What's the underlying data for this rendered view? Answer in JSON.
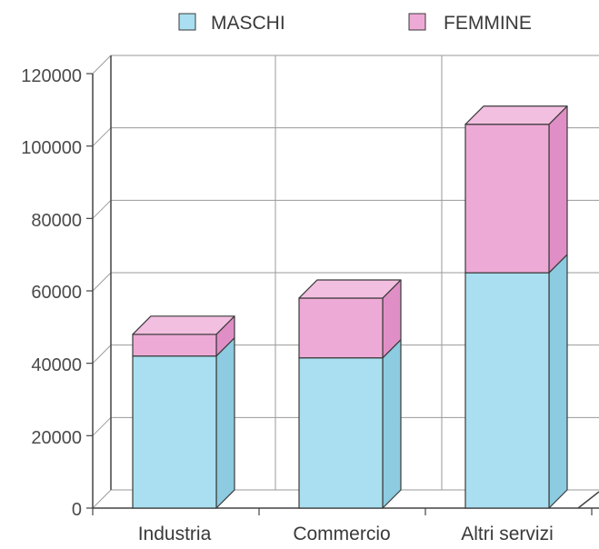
{
  "chart_data": {
    "type": "bar",
    "stacked": true,
    "three_d": true,
    "categories": [
      "Industria",
      "Commercio",
      "Altri servizi"
    ],
    "series": [
      {
        "name": "MASCHI",
        "color": "#a9dff0",
        "values": [
          42000,
          41500,
          65000
        ]
      },
      {
        "name": "FEMMINE",
        "color": "#eeaad6",
        "values": [
          6000,
          16500,
          41000
        ]
      }
    ],
    "y_ticks": [
      "0",
      "20000",
      "40000",
      "60000",
      "80000",
      "100000",
      "120000"
    ],
    "ylim": [
      0,
      120000
    ],
    "grid": true,
    "legend_position": "top",
    "colors": {
      "grid": "#9a9a9a",
      "edge": "#3a3a3a",
      "side_maschi": "#8ccbe0",
      "top_femmine": "#f3bfe0",
      "side_femmine": "#e08fc6"
    }
  }
}
